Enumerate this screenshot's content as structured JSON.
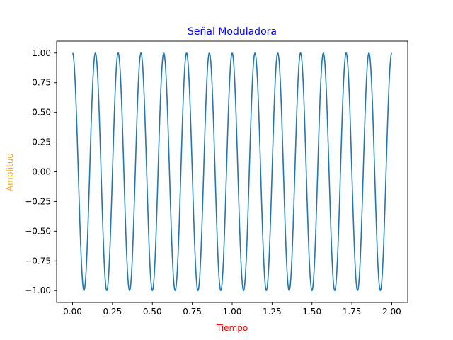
{
  "chart_data": {
    "type": "line",
    "title": "Señal Moduladora",
    "xlabel": "Tiempo",
    "ylabel": "Amplitud",
    "xlim": [
      -0.1,
      2.1
    ],
    "ylim": [
      -1.1,
      1.1
    ],
    "xticks": [
      0.0,
      0.25,
      0.5,
      0.75,
      1.0,
      1.25,
      1.5,
      1.75,
      2.0
    ],
    "xtick_labels": [
      "0.00",
      "0.25",
      "0.50",
      "0.75",
      "1.00",
      "1.25",
      "1.50",
      "1.75",
      "2.00"
    ],
    "yticks": [
      -1.0,
      -0.75,
      -0.5,
      -0.25,
      0.0,
      0.25,
      0.5,
      0.75,
      1.0
    ],
    "ytick_labels": [
      "−1.00",
      "−0.75",
      "−0.50",
      "−0.25",
      "0.00",
      "0.25",
      "0.50",
      "0.75",
      "1.00"
    ],
    "grid": false,
    "legend": "none",
    "series": [
      {
        "function": "cosine",
        "amplitude": 1.0,
        "frequency": 7,
        "x_range": [
          0,
          2
        ],
        "color": "#1f77b4"
      }
    ],
    "colors": {
      "title": "#0000ff",
      "xlabel": "#ff0000",
      "ylabel": "#ffa500",
      "line": "#1f77b4"
    }
  }
}
